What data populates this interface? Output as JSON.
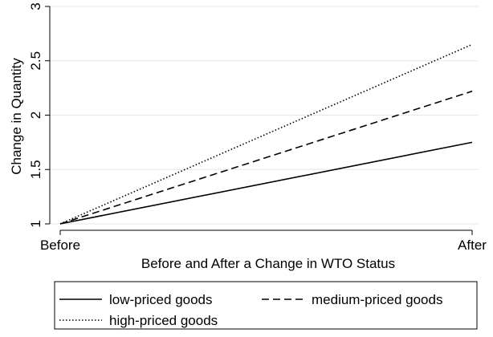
{
  "chart_data": {
    "type": "line",
    "categories": [
      "Before",
      "After"
    ],
    "xlabel": "Before and After a Change in WTO Status",
    "ylabel": "Change in Quantity",
    "ylim": [
      1,
      3
    ],
    "yticks": [
      1,
      1.5,
      2,
      2.5,
      3
    ],
    "ytick_labels": [
      "1",
      "1.5",
      "2",
      "2.5",
      "3"
    ],
    "grid": true,
    "legend_position": "bottom",
    "series": [
      {
        "name": "low-priced goods",
        "values": [
          1,
          1.75
        ],
        "style": "solid",
        "color": "#000000"
      },
      {
        "name": "medium-priced goods",
        "values": [
          1,
          2.22
        ],
        "style": "dashed",
        "color": "#000000"
      },
      {
        "name": "high-priced goods",
        "values": [
          1,
          2.65
        ],
        "style": "dotted",
        "color": "#000000"
      }
    ]
  }
}
